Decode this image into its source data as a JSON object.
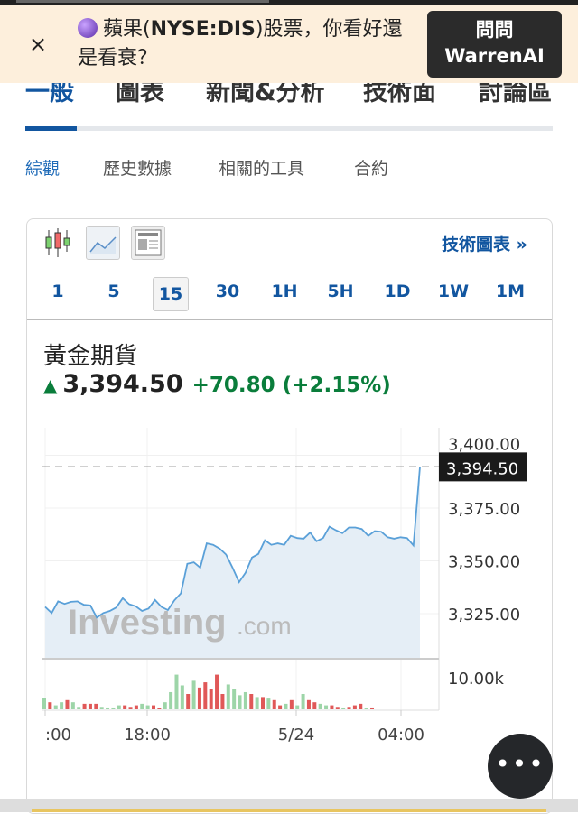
{
  "banner": {
    "close": "×",
    "message_pre": "蘋果(",
    "message_bold": "NYSE:DIS",
    "message_post": ")股票，你看好還是看衰？",
    "ask_line1": "問問",
    "ask_line2": "WarrenAI"
  },
  "tabs": [
    {
      "label": "一般",
      "active": true
    },
    {
      "label": "圖表"
    },
    {
      "label": "新聞&分析"
    },
    {
      "label": "技術面"
    },
    {
      "label": "討論區"
    }
  ],
  "subtabs": [
    {
      "label": "綜觀",
      "active": true
    },
    {
      "label": "歷史數據"
    },
    {
      "label": "相關的工具"
    },
    {
      "label": "合約"
    }
  ],
  "toolbar": {
    "icons": [
      "candlestick-icon",
      "area-chart-icon",
      "news-layout-icon"
    ],
    "tech_chart": "技術圖表 »"
  },
  "timeframes": [
    "1",
    "5",
    "15",
    "30",
    "1H",
    "5H",
    "1D",
    "1W",
    "1M"
  ],
  "selected_timeframe": "15",
  "instrument": {
    "name": "黃金期貨",
    "price": "3,394.50",
    "change": "+70.80",
    "change_pct": "(+2.15%)",
    "direction": "up"
  },
  "colors": {
    "accent": "#1256a0",
    "up": "#0a7d3b",
    "line": "#5aa0d8",
    "vol_up": "#9dd5a8",
    "vol_down": "#e05858"
  },
  "chart_data": {
    "type": "area",
    "yticks": [
      "3,400.00",
      "3,375.00",
      "3,350.00",
      "3,325.00"
    ],
    "ytick_values": [
      3400,
      3375,
      3350,
      3325
    ],
    "xticks": [
      ":00",
      "18:00",
      "5/24",
      "04:00"
    ],
    "ylim": [
      3303,
      3405
    ],
    "last_price_label": "3,394.50",
    "last_price": 3394.5,
    "watermark": "Investing.com",
    "values": [
      3328.2,
      3325.3,
      3330.8,
      3329.6,
      3330.6,
      3330.8,
      3329.2,
      3328.9,
      3323.1,
      3325.3,
      3326.3,
      3327.9,
      3332.3,
      3329.5,
      3328.5,
      3326.3,
      3327.4,
      3331.5,
      3328.2,
      3326.7,
      3331.3,
      3334.6,
      3348.6,
      3349.3,
      3346.8,
      3358.3,
      3357.6,
      3355.8,
      3353.0,
      3346.8,
      3339.9,
      3344.3,
      3351.6,
      3353.3,
      3359.8,
      3357.6,
      3358.3,
      3357.6,
      3361.9,
      3360.8,
      3360.5,
      3363.4,
      3359.3,
      3360.8,
      3366.2,
      3364.5,
      3363.1,
      3365.8,
      3365.8,
      3365.1,
      3361.9,
      3364.1,
      3363.8,
      3361.2,
      3360.5,
      3361.2,
      3360.8,
      3357.3,
      3394.5
    ],
    "volume_tick": "10.00k",
    "volume_k": [
      3.8,
      2.3,
      1.3,
      2.3,
      3,
      2.3,
      0.8,
      1.8,
      1.8,
      1.8,
      0.8,
      0.6,
      0.6,
      1.3,
      1.3,
      0.8,
      1.3,
      1.8,
      1.3,
      1.3,
      0.3,
      2.3,
      5.6,
      11.3,
      7.8,
      5,
      9.3,
      7.1,
      8.8,
      6.6,
      11.3,
      5,
      8.1,
      6.6,
      4.6,
      5.6,
      5,
      4,
      4,
      3.5,
      3,
      1.3,
      1.8,
      3,
      1.3,
      5,
      3,
      2.3,
      1.8,
      1.3,
      1.3,
      0.8,
      0.6,
      0.8,
      1.3,
      1.8,
      0.3,
      0.6
    ],
    "volume_up": [
      1,
      0,
      1,
      1,
      0,
      1,
      1,
      0,
      0,
      0,
      1,
      1,
      1,
      1,
      0,
      0,
      0,
      1,
      1,
      0,
      0,
      1,
      1,
      1,
      1,
      0,
      1,
      0,
      0,
      0,
      0,
      0,
      1,
      1,
      1,
      1,
      0,
      1,
      0,
      1,
      0,
      0,
      1,
      0,
      1,
      1,
      0,
      0,
      1,
      1,
      0,
      0,
      1,
      0,
      0,
      0,
      1,
      0
    ]
  },
  "fab": "•••"
}
